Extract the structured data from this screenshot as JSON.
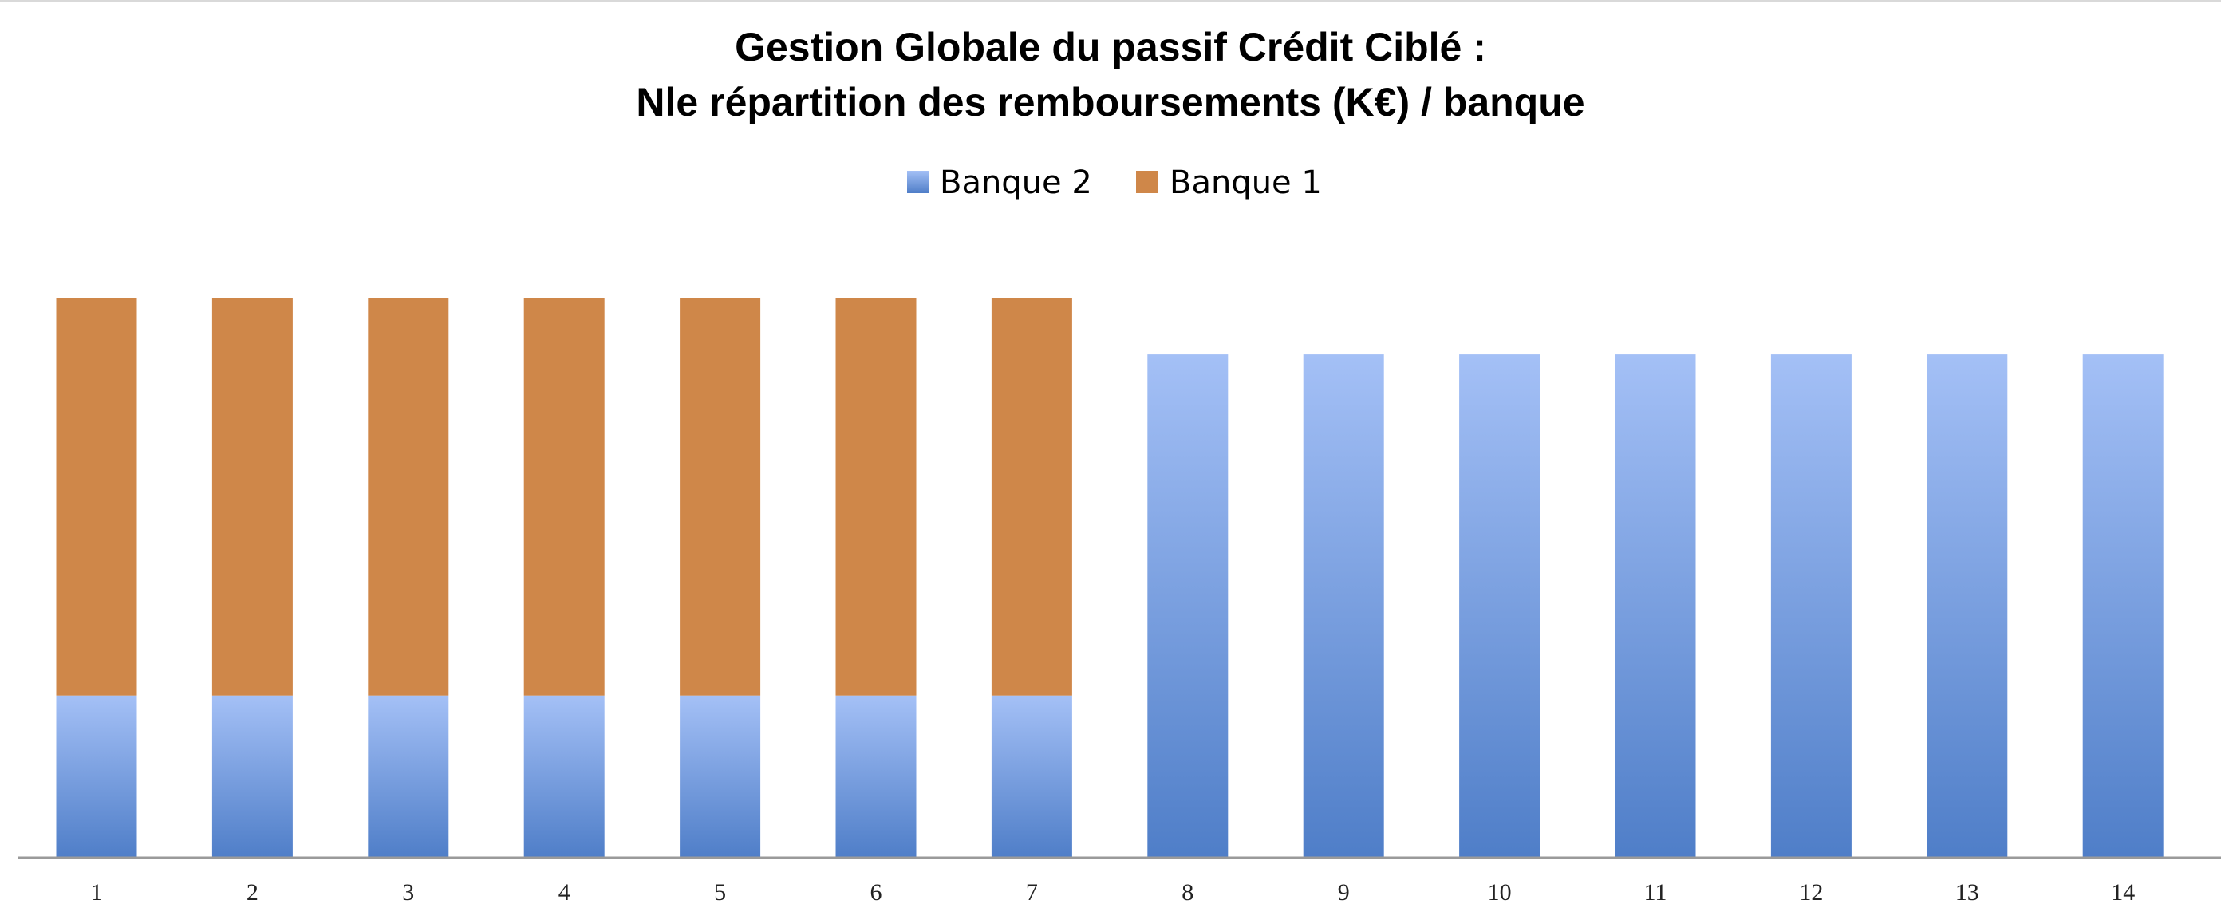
{
  "chart_data": {
    "type": "bar",
    "stacked": true,
    "title": [
      "Gestion Globale du passif  Crédit Ciblé :",
      "Nle répartition des remboursements (K€) / banque"
    ],
    "xlabel": "",
    "ylabel": "",
    "categories": [
      "1",
      "2",
      "3",
      "4",
      "5",
      "6",
      "7",
      "8",
      "9",
      "10",
      "11",
      "12",
      "13",
      "14"
    ],
    "series": [
      {
        "name": "Banque 2",
        "color": "#4f7ec8",
        "color_light": "#a4c0f6",
        "values": [
          29,
          29,
          29,
          29,
          29,
          29,
          29,
          90,
          90,
          90,
          90,
          90,
          90,
          90
        ]
      },
      {
        "name": "Banque 1",
        "color": "#cf8749",
        "values": [
          71,
          71,
          71,
          71,
          71,
          71,
          71,
          0,
          0,
          0,
          0,
          0,
          0,
          0
        ]
      }
    ],
    "legend": [
      "Banque 2",
      "Banque 1"
    ],
    "legend_position": "top",
    "ylim": [
      0,
      100
    ],
    "grid": false,
    "y_axis_visible": false
  }
}
